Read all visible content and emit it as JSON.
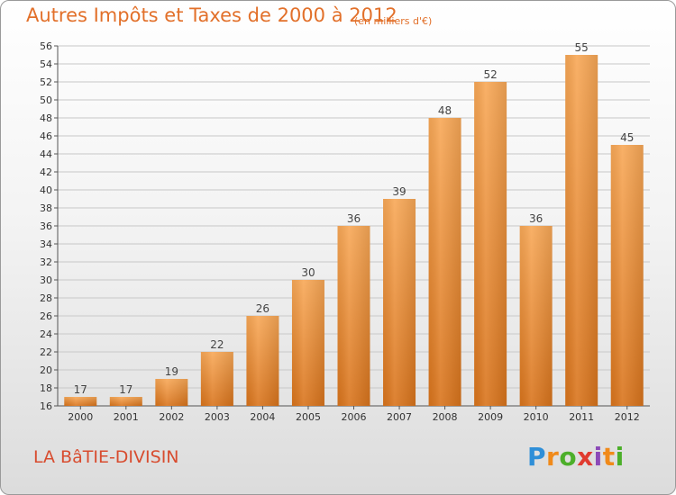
{
  "header": {
    "title": "Autres Impôts et Taxes de 2000 à 2012",
    "subtitle": "(en milliers d'€)"
  },
  "footer": {
    "commune": "LA BâTIE-DIVISIN",
    "logo": "Proxiti"
  },
  "colors": {
    "title": "#e2702a",
    "commune": "#d84c2f",
    "bar_top": "#f8a857",
    "bar_bottom": "#d9741c"
  },
  "chart_data": {
    "type": "bar",
    "categories": [
      "2000",
      "2001",
      "2002",
      "2003",
      "2004",
      "2005",
      "2006",
      "2007",
      "2008",
      "2009",
      "2010",
      "2011",
      "2012"
    ],
    "values": [
      17,
      17,
      19,
      22,
      26,
      30,
      36,
      39,
      48,
      52,
      36,
      55,
      45
    ],
    "title": "Autres Impôts et Taxes de 2000 à 2012",
    "subtitle": "(en milliers d'€)",
    "ylim": [
      16,
      56
    ],
    "yticks": [
      16,
      18,
      20,
      22,
      24,
      26,
      28,
      30,
      32,
      34,
      36,
      38,
      40,
      42,
      44,
      46,
      48,
      50,
      52,
      54,
      56
    ],
    "grid": true,
    "legend": "none"
  }
}
